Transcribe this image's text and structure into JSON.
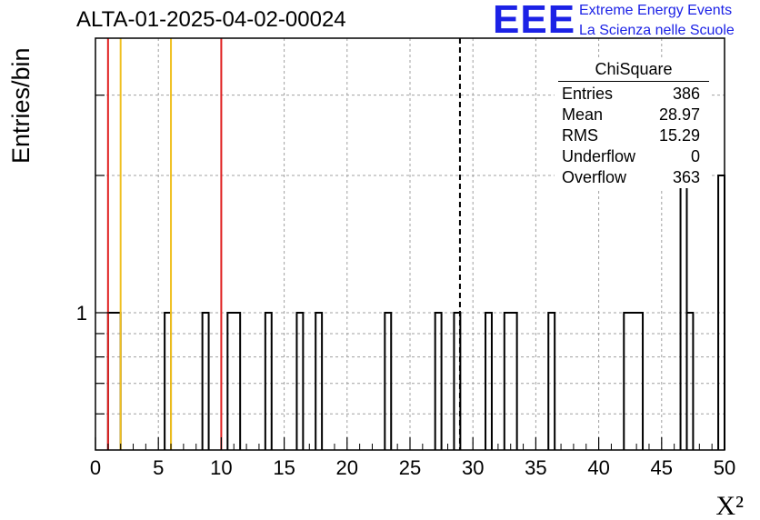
{
  "header": {
    "title": "ALTA-01-2025-04-02-00024",
    "logo_text": "EEE",
    "logo_line1": "Extreme Energy Events",
    "logo_line2": "La Scienza nelle Scuole"
  },
  "stats_box": {
    "title": "ChiSquare",
    "rows": [
      {
        "label": "Entries",
        "value": "386"
      },
      {
        "label": "Mean",
        "value": "28.97"
      },
      {
        "label": "RMS",
        "value": "15.29"
      },
      {
        "label": "Underflow",
        "value": "0"
      },
      {
        "label": "Overflow",
        "value": "363"
      }
    ]
  },
  "chart_data": {
    "type": "bar",
    "subtype": "histogram-step",
    "xlabel": "X²",
    "ylabel": "Entries/bin",
    "xlim": [
      0,
      50
    ],
    "x_ticks": [
      0,
      5,
      10,
      15,
      20,
      25,
      30,
      35,
      40,
      45,
      50
    ],
    "y_log_scale": true,
    "ylim": [
      0.5,
      4
    ],
    "y_tick_labels": [
      {
        "value": 1,
        "label": "1"
      }
    ],
    "grid": true,
    "bins": [
      {
        "x0": 1.0,
        "x1": 2.0,
        "count": 1
      },
      {
        "x0": 5.5,
        "x1": 6.0,
        "count": 1
      },
      {
        "x0": 8.5,
        "x1": 9.0,
        "count": 1
      },
      {
        "x0": 10.5,
        "x1": 11.5,
        "count": 1
      },
      {
        "x0": 13.5,
        "x1": 14.0,
        "count": 1
      },
      {
        "x0": 16.0,
        "x1": 16.5,
        "count": 1
      },
      {
        "x0": 17.5,
        "x1": 18.0,
        "count": 1
      },
      {
        "x0": 23.0,
        "x1": 23.5,
        "count": 1
      },
      {
        "x0": 27.0,
        "x1": 27.5,
        "count": 1
      },
      {
        "x0": 28.5,
        "x1": 29.0,
        "count": 1
      },
      {
        "x0": 31.0,
        "x1": 31.5,
        "count": 1
      },
      {
        "x0": 32.5,
        "x1": 33.5,
        "count": 1
      },
      {
        "x0": 36.0,
        "x1": 36.5,
        "count": 1
      },
      {
        "x0": 42.0,
        "x1": 43.5,
        "count": 1
      },
      {
        "x0": 46.5,
        "x1": 47.0,
        "count": 2
      },
      {
        "x0": 47.0,
        "x1": 47.5,
        "count": 1
      },
      {
        "x0": 49.5,
        "x1": 50.0,
        "count": 2
      }
    ],
    "reference_lines": [
      {
        "x": 1.0,
        "color": "#e02020",
        "style": "solid"
      },
      {
        "x": 2.0,
        "color": "#f0c020",
        "style": "solid"
      },
      {
        "x": 6.0,
        "color": "#f0c020",
        "style": "solid"
      },
      {
        "x": 10.0,
        "color": "#e02020",
        "style": "solid"
      },
      {
        "x": 28.97,
        "color": "#000000",
        "style": "dashed"
      }
    ]
  }
}
